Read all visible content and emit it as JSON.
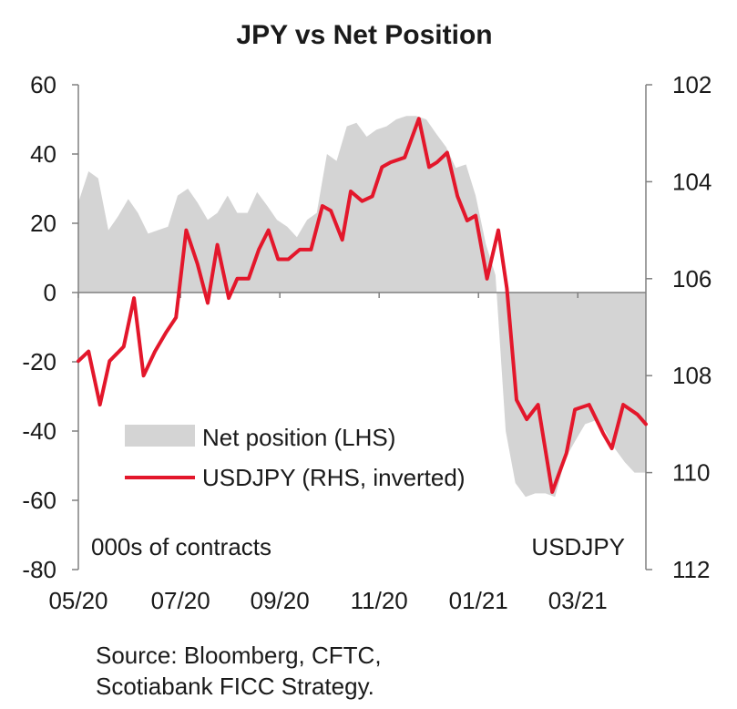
{
  "chart_data": {
    "type": "area+line",
    "title": "JPY vs Net Position",
    "left_axis": {
      "label": "000s of contracts",
      "ylim": [
        -80,
        60
      ],
      "ticks": [
        "60",
        "40",
        "20",
        "0",
        "-20",
        "-40",
        "-60",
        "-80"
      ],
      "tick_values": [
        60,
        40,
        20,
        0,
        -20,
        -40,
        -60,
        -80
      ]
    },
    "right_axis": {
      "label": "USDJPY",
      "ylim": [
        102,
        112
      ],
      "inverted": true,
      "ticks": [
        "102",
        "104",
        "106",
        "108",
        "110",
        "112"
      ],
      "tick_values": [
        102,
        104,
        106,
        108,
        110,
        112
      ]
    },
    "x_ticks": [
      "05/20",
      "07/20",
      "09/20",
      "11/20",
      "01/21",
      "03/21"
    ],
    "x_range": [
      0,
      1
    ],
    "x_tick_positions": [
      0.0,
      0.18,
      0.355,
      0.53,
      0.705,
      0.88
    ],
    "legend": {
      "placement": "lower-left",
      "entries": [
        "Net position (LHS)",
        "USDJPY (RHS, inverted)"
      ]
    },
    "grid": false,
    "colors": {
      "net_position": "#d4d4d4",
      "usdjpy": "#e3172b",
      "axis": "#808080"
    },
    "series": [
      {
        "name": "Net position (LHS)",
        "axis": "left",
        "style": "area",
        "x": [
          0.0,
          0.018,
          0.035,
          0.053,
          0.07,
          0.088,
          0.105,
          0.123,
          0.14,
          0.158,
          0.175,
          0.193,
          0.21,
          0.228,
          0.245,
          0.263,
          0.28,
          0.298,
          0.315,
          0.333,
          0.35,
          0.368,
          0.385,
          0.403,
          0.42,
          0.438,
          0.455,
          0.473,
          0.49,
          0.508,
          0.525,
          0.543,
          0.56,
          0.578,
          0.595,
          0.613,
          0.63,
          0.648,
          0.665,
          0.683,
          0.7,
          0.718,
          0.735,
          0.753,
          0.77,
          0.788,
          0.805,
          0.823,
          0.84,
          0.858,
          0.875,
          0.893,
          0.91,
          0.928,
          0.945,
          0.963,
          0.98,
          1.0
        ],
        "values": [
          26,
          35,
          33,
          18,
          22,
          27,
          23,
          17,
          18,
          19,
          28,
          30,
          26,
          21,
          23,
          28,
          23,
          23,
          29,
          25,
          21,
          19,
          16,
          21,
          23,
          40,
          38,
          48,
          49,
          45,
          47,
          48,
          50,
          51,
          51,
          50,
          46,
          42,
          36,
          37,
          28,
          14,
          5,
          -40,
          -55,
          -59,
          -58,
          -58,
          -59,
          -48,
          -43,
          -38,
          -37,
          -40,
          -45,
          -49,
          -52,
          -52
        ]
      },
      {
        "name": "USDJPY (RHS, inverted)",
        "axis": "right",
        "style": "line",
        "x": [
          0.0,
          0.018,
          0.038,
          0.055,
          0.08,
          0.098,
          0.115,
          0.135,
          0.155,
          0.172,
          0.19,
          0.21,
          0.228,
          0.245,
          0.265,
          0.28,
          0.3,
          0.318,
          0.335,
          0.352,
          0.37,
          0.39,
          0.41,
          0.43,
          0.445,
          0.465,
          0.48,
          0.5,
          0.518,
          0.535,
          0.55,
          0.575,
          0.6,
          0.618,
          0.632,
          0.65,
          0.668,
          0.685,
          0.7,
          0.72,
          0.74,
          0.755,
          0.772,
          0.79,
          0.81,
          0.835,
          0.86,
          0.875,
          0.9,
          0.925,
          0.94,
          0.96,
          0.985,
          1.0
        ],
        "values": [
          107.7,
          107.5,
          108.6,
          107.7,
          107.4,
          106.4,
          108.0,
          107.5,
          107.1,
          106.8,
          105.0,
          105.7,
          106.5,
          105.3,
          106.4,
          106.0,
          106.0,
          105.4,
          105.0,
          105.6,
          105.6,
          105.4,
          105.4,
          104.5,
          104.6,
          105.2,
          104.2,
          104.4,
          104.3,
          103.7,
          103.6,
          103.5,
          102.7,
          103.7,
          103.6,
          103.4,
          104.3,
          104.8,
          104.7,
          106.0,
          105.0,
          106.2,
          108.5,
          108.9,
          108.6,
          110.4,
          109.6,
          108.7,
          108.6,
          109.2,
          109.5,
          108.6,
          108.8,
          109.0
        ]
      }
    ]
  },
  "source": [
    "Source: Bloomberg, CFTC,",
    "Scotiabank FICC  Strategy."
  ]
}
